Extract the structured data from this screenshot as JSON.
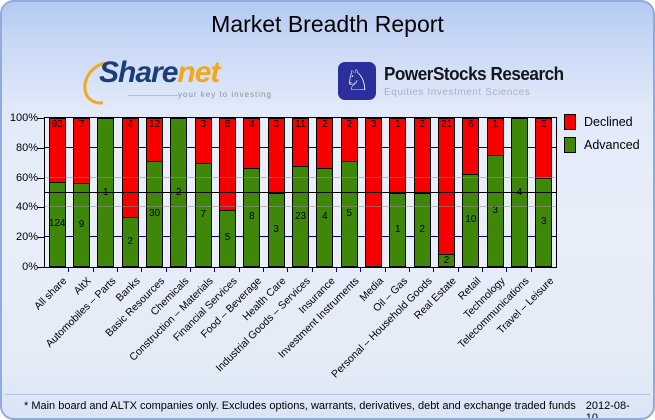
{
  "header": {
    "title": "Market Breadth Report"
  },
  "logos": {
    "sharenet": {
      "name_primary": "Share",
      "name_secondary": "net",
      "tagline": "your key to investing"
    },
    "powerstocks": {
      "icon": "knight-chess-icon",
      "icon_glyph": "♘",
      "title": "PowerStocks Research",
      "subtitle": "Equities Investment Sciences"
    }
  },
  "chart_data": {
    "type": "bar",
    "stacked": true,
    "orientation": "vertical",
    "title": "Market Breadth Report",
    "categories": [
      "All share",
      "AltX",
      "Automobiles – Parts",
      "Banks",
      "Basic Resources",
      "Chemicals",
      "Construction – Materials",
      "Financial Services",
      "Food – Beverage",
      "Health Care",
      "Industrial Goods – Services",
      "Insurance",
      "Investment Instruments",
      "Media",
      "Oil – Gas",
      "Personal – Household Goods",
      "Real Estate",
      "Retail",
      "Technology",
      "Telecommunications",
      "Travel – Leisure"
    ],
    "series": [
      {
        "name": "Declined",
        "color": "#f90000",
        "values": [
          93,
          7,
          0,
          4,
          12,
          0,
          3,
          8,
          4,
          3,
          11,
          2,
          2,
          3,
          1,
          2,
          21,
          6,
          1,
          0,
          2
        ]
      },
      {
        "name": "Advanced",
        "color": "#3f8708",
        "values": [
          124,
          9,
          1,
          2,
          30,
          2,
          7,
          5,
          8,
          3,
          23,
          4,
          5,
          0,
          1,
          2,
          2,
          10,
          3,
          4,
          3
        ]
      }
    ],
    "y_axis": {
      "unit": "percent of sector total",
      "min": 0,
      "max": 100,
      "ticks": [
        "100%",
        "80%",
        "60%",
        "40%",
        "20%",
        "0%"
      ]
    },
    "gridlines": {
      "navy_at": [
        80,
        20
      ],
      "silver_at": [
        60,
        40
      ],
      "black_at": [
        50
      ],
      "navy_color": "#00007f"
    },
    "legend": {
      "position": "top-right",
      "entries": [
        "Declined",
        "Advanced"
      ]
    },
    "value_labels": "segment counts shown on bars"
  },
  "footer": {
    "note": "* Main board and ALTX companies only. Excludes options, warrants, derivatives, debt and exchange traded funds",
    "date": "2012-08-10"
  }
}
